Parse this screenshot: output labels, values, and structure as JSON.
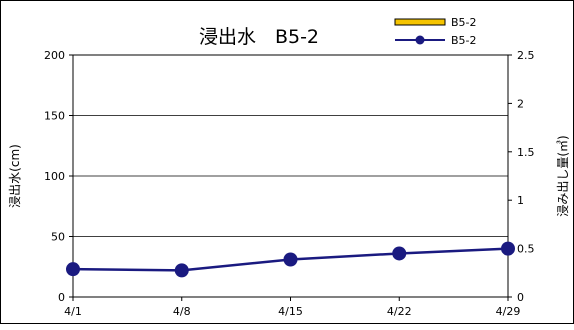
{
  "chart_data": {
    "type": "line",
    "title": "浸出水　B5-2",
    "ylabel": "浸出水(cm)",
    "y2label": "浸み出し量(㎥)",
    "categories": [
      "4/1",
      "4/8",
      "4/15",
      "4/22",
      "4/29"
    ],
    "ylim": [
      0,
      200
    ],
    "y2lim": [
      0,
      2.5
    ],
    "yticks": [
      "0",
      "50",
      "100",
      "150",
      "200"
    ],
    "y2ticks": [
      "0",
      "0.5",
      "1",
      "1.5",
      "2",
      "2.5"
    ],
    "grid": true,
    "legend_position": "top-right",
    "series": [
      {
        "name": "B5-2",
        "kind": "bar",
        "axis": "y2",
        "color": "#f5c400",
        "values": [
          0,
          0,
          0,
          0,
          0
        ]
      },
      {
        "name": "B5-2",
        "kind": "line",
        "axis": "y",
        "color": "#1a1a80",
        "values": [
          23,
          22,
          31,
          36,
          40
        ]
      }
    ]
  }
}
